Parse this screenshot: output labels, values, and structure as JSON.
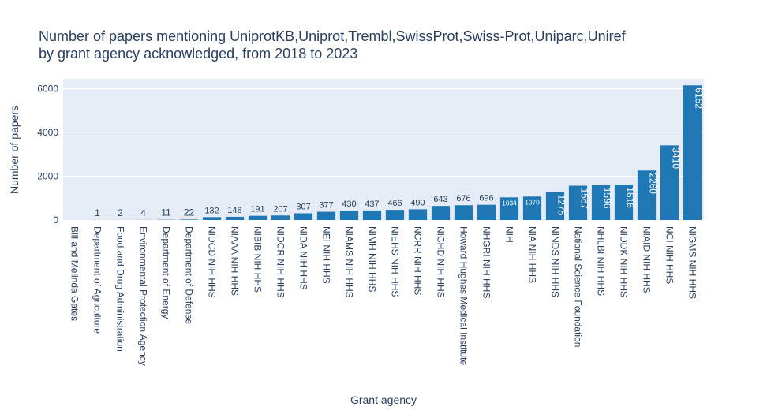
{
  "chart_data": {
    "type": "bar",
    "title_lines": [
      "Number of papers mentioning UniprotKB,Uniprot,Trembl,SwissProt,Swiss-Prot,Uniparc,Uniref",
      "by grant agency acknowledged, from 2018 to 2023"
    ],
    "xlabel": "Grant agency",
    "ylabel": "Number of papers",
    "ylim": [
      0,
      6450
    ],
    "yticks": [
      0,
      2000,
      4000,
      6000
    ],
    "grid": true,
    "bar_color": "#1f77b4",
    "plot_bg": "#e5ecf6",
    "text_color": "#2a3f5f",
    "categories": [
      "Bill and Melinda Gates",
      "Department of Agriculture",
      "Food and Drug Administration",
      "Environmental Protection Agency",
      "Department of Energy",
      "Department of Defense",
      "NIDCD NIH HHS",
      "NIAAA NIH HHS",
      "NIBIB NIH HHS",
      "NIDCR NIH HHS",
      "NIDA NIH HHS",
      "NEI NIH HHS",
      "NIAMS NIH HHS",
      "NIMH NIH HHS",
      "NIEHS NIH HHS",
      "NCRR NIH HHS",
      "NICHD NIH HHS",
      "Howard Hughes Medical Institute",
      "NHGRI NIH HHS",
      "NIH",
      "NIA NIH HHS",
      "NINDS NIH HHS",
      "National Science Foundation",
      "NHLBI NIH HHS",
      "NIDDK NIH HHS",
      "NIAID NIH HHS",
      "NCI NIH HHS",
      "NIGMS NIH HHS"
    ],
    "values": [
      0,
      1,
      2,
      4,
      11,
      22,
      132,
      148,
      191,
      207,
      307,
      377,
      430,
      437,
      466,
      490,
      643,
      676,
      696,
      1034,
      1070,
      1275,
      1567,
      1596,
      1616,
      2260,
      3410,
      6152
    ],
    "data_labels": [
      "",
      "1",
      "2",
      "4",
      "11",
      "22",
      "132",
      "148",
      "191",
      "207",
      "307",
      "377",
      "430",
      "437",
      "466",
      "490",
      "643",
      "676",
      "696",
      "1034",
      "1070",
      "1275",
      "1567",
      "1596",
      "1616",
      "2260",
      "3410",
      "6152"
    ]
  }
}
